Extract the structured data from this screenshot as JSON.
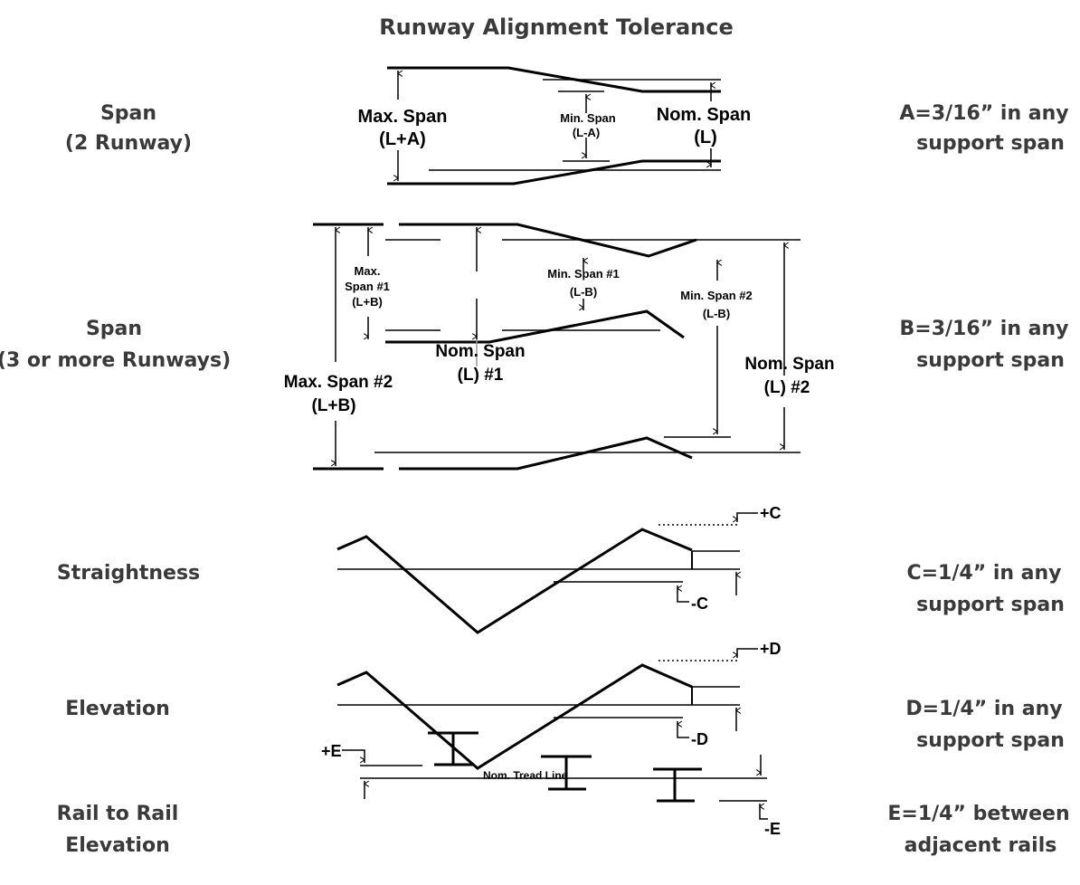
{
  "title": "Runway Alignment Tolerance",
  "sections": [
    {
      "left": [
        "Span",
        "(2 Runway)"
      ],
      "right": [
        "A=3/16” in any",
        "support span"
      ],
      "labels": {
        "max_span": [
          "Max. Span",
          "(L+A)"
        ],
        "min_span": [
          "Min. Span",
          "(L-A)"
        ],
        "nom_span": [
          "Nom. Span",
          "(L)"
        ]
      }
    },
    {
      "left": [
        "Span",
        "(3 or more Runways)"
      ],
      "right": [
        "B=3/16” in any",
        "support span"
      ],
      "labels": {
        "max_span_1": [
          "Max.",
          "Span #1",
          "(L+B)"
        ],
        "max_span_2": [
          "Max. Span #2",
          "(L+B)"
        ],
        "nom_span_1": [
          "Nom. Span",
          "(L) #1"
        ],
        "min_span_1": [
          "Min. Span #1",
          "(L-B)"
        ],
        "min_span_2": [
          "Min. Span #2",
          "(L-B)"
        ],
        "nom_span_2": [
          "Nom. Span",
          "(L) #2"
        ]
      }
    },
    {
      "left": [
        "Straightness"
      ],
      "right": [
        "C=1/4” in any",
        "support span"
      ],
      "labels": {
        "plus": "+C",
        "minus": "-C"
      }
    },
    {
      "left": [
        "Elevation"
      ],
      "right": [
        "D=1/4” in any",
        "support span"
      ],
      "labels": {
        "plus": "+D",
        "minus": "-D"
      }
    },
    {
      "left": [
        "Rail to Rail",
        "Elevation"
      ],
      "right": [
        "E=1/4” between",
        "adjacent rails"
      ],
      "labels": {
        "plus": "+E",
        "minus": "-E",
        "tread": "Nom. Tread Line"
      }
    }
  ]
}
